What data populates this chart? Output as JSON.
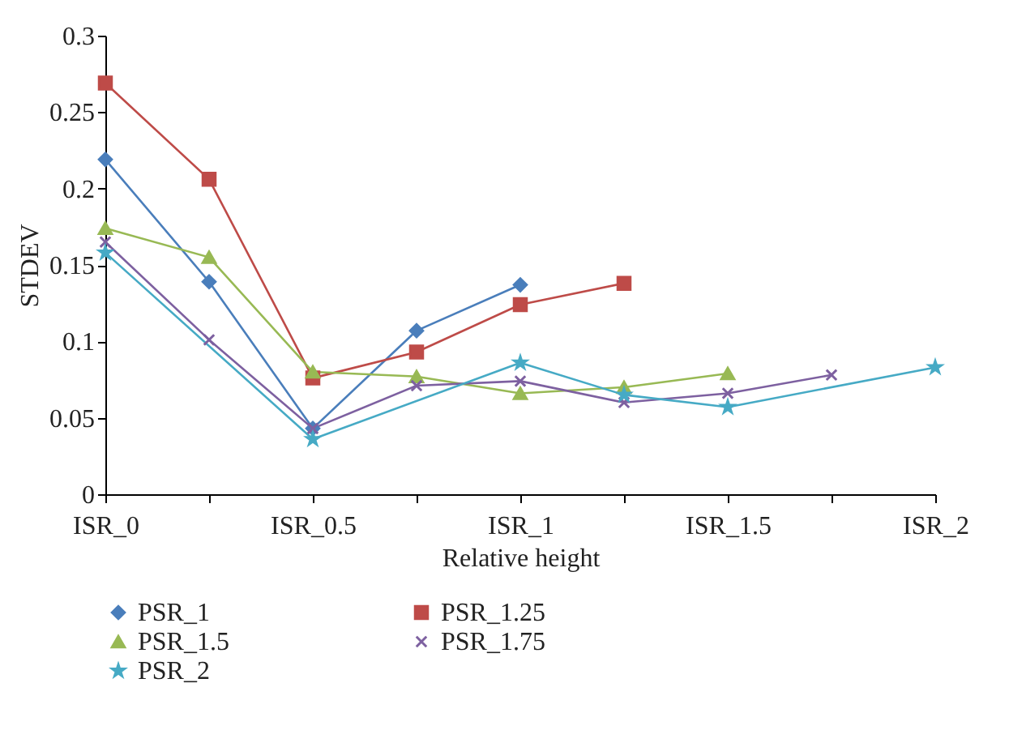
{
  "chart_data": {
    "type": "line",
    "xlabel": "Relative height",
    "ylabel": "STDEV",
    "categories": [
      "ISR_0",
      null,
      "ISR_0.5",
      null,
      "ISR_1",
      null,
      "ISR_1.5",
      null,
      "ISR_2"
    ],
    "series": [
      {
        "name": "PSR_1",
        "color": "#4a7ebb",
        "marker": "diamond",
        "values": [
          0.219,
          0.139,
          0.043,
          0.107,
          0.137,
          null,
          null,
          null,
          null
        ]
      },
      {
        "name": "PSR_1.25",
        "color": "#be4b48",
        "marker": "square",
        "values": [
          0.269,
          0.206,
          0.076,
          0.093,
          0.124,
          0.138,
          null,
          null,
          null
        ]
      },
      {
        "name": "PSR_1.5",
        "color": "#98b954",
        "marker": "triangle",
        "values": [
          0.174,
          0.155,
          0.08,
          0.077,
          0.066,
          0.07,
          0.079,
          null,
          null
        ]
      },
      {
        "name": "PSR_1.75",
        "color": "#7d60a0",
        "marker": "cross",
        "values": [
          0.165,
          0.101,
          0.043,
          0.071,
          0.074,
          0.06,
          0.066,
          0.078,
          null
        ]
      },
      {
        "name": "PSR_2",
        "color": "#46aac5",
        "marker": "star",
        "values": [
          0.158,
          null,
          0.036,
          null,
          0.086,
          0.065,
          0.057,
          null,
          0.083
        ]
      }
    ],
    "ylim": [
      0,
      0.3
    ],
    "yticks": [
      0,
      0.05,
      0.1,
      0.15,
      0.2,
      0.25,
      0.3
    ],
    "grid": false,
    "legend": "bottom",
    "line_style": "solid"
  }
}
